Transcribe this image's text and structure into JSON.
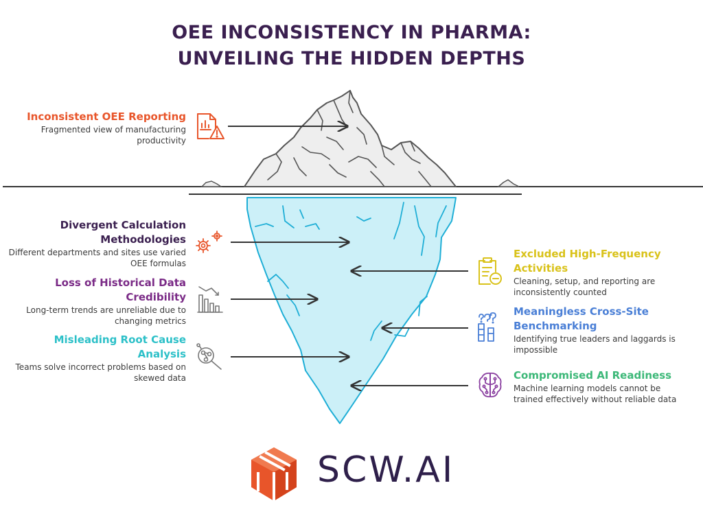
{
  "title": {
    "line1": "OEE INCONSISTENCY IN PHARMA:",
    "line2": "UNVEILING THE HIDDEN DEPTHS"
  },
  "above_water": {
    "heading": "Inconsistent OEE Reporting",
    "description": "Fragmented view of manufacturing productivity",
    "color": "#e8552a",
    "icon": "chart-warning-document-icon"
  },
  "left_items": [
    {
      "heading": "Divergent Calculation Methodologies",
      "description": "Different departments and sites use varied OEE formulas",
      "color": "#3a1f4f",
      "icon": "gears-icon"
    },
    {
      "heading": "Loss of Historical Data Credibility",
      "description": "Long-term trends are unreliable due to changing metrics",
      "color": "#7a2a86",
      "icon": "declining-bar-chart-icon"
    },
    {
      "heading": "Misleading Root Cause Analysis",
      "description": "Teams solve incorrect problems based on skewed data",
      "color": "#2cc0c8",
      "icon": "magnifier-network-icon"
    }
  ],
  "right_items": [
    {
      "heading": "Excluded High-Frequency Activities",
      "description": "Cleaning, setup, and reporting are inconsistently counted",
      "color": "#d9c21a",
      "icon": "clipboard-minus-icon"
    },
    {
      "heading": "Meaningless Cross-Site Benchmarking",
      "description": "Identifying true leaders and laggards is impossible",
      "color": "#4a7fd6",
      "icon": "bars-question-icon"
    },
    {
      "heading": "Compromised AI Readiness",
      "description": "Machine learning models cannot be trained effectively without reliable data",
      "color": "#3cb878",
      "icon": "brain-circuit-icon"
    }
  ],
  "logo": {
    "text": "SCW.AI",
    "accent": "#e8552a",
    "text_color": "#2e1f4a"
  },
  "colors": {
    "water_ice": "#ccf0f8",
    "ice_outline": "#1eaed6",
    "iceberg_top": "#eeeeee",
    "iceberg_outline": "#555555"
  }
}
